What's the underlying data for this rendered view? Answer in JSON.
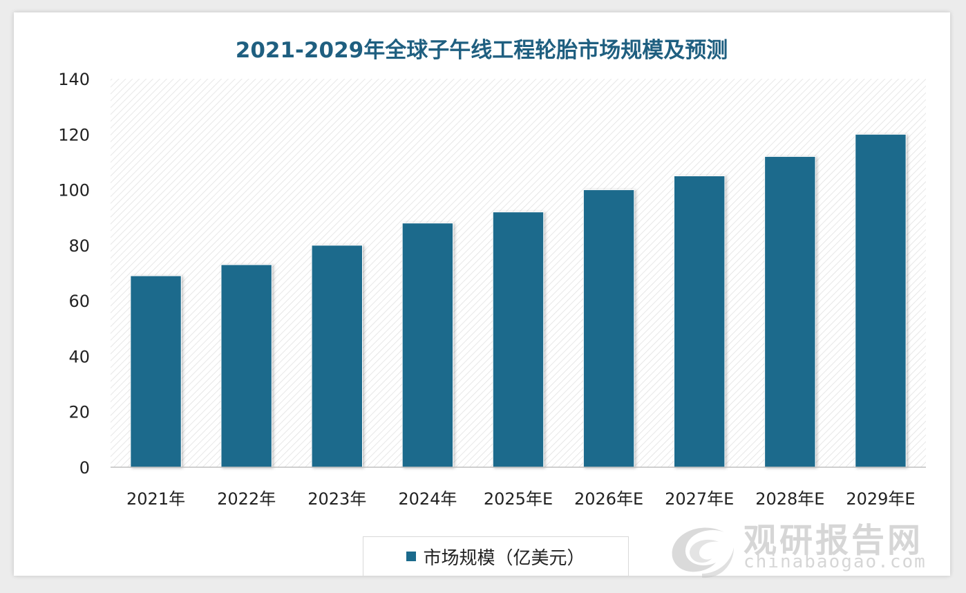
{
  "chart_data": {
    "type": "bar",
    "title": "2021-2029年全球子午线工程轮胎市场规模及预测",
    "categories": [
      "2021年",
      "2022年",
      "2023年",
      "2024年",
      "2025年E",
      "2026年E",
      "2027年E",
      "2028年E",
      "2029年E"
    ],
    "series": [
      {
        "name": "市场规模（亿美元）",
        "values": [
          69,
          73,
          80,
          88,
          92,
          100,
          105,
          112,
          120
        ]
      }
    ],
    "ylim": [
      0,
      140
    ],
    "yticks": [
      0,
      20,
      40,
      60,
      80,
      100,
      120,
      140
    ],
    "legend_position": "bottom",
    "grid": false,
    "bar_color": "#1b6a8c",
    "title_color": "#1f5f80"
  },
  "watermark": {
    "cn": "观研报告网",
    "en": "chinabaogao.com",
    "icon": "swirl-logo-icon"
  }
}
